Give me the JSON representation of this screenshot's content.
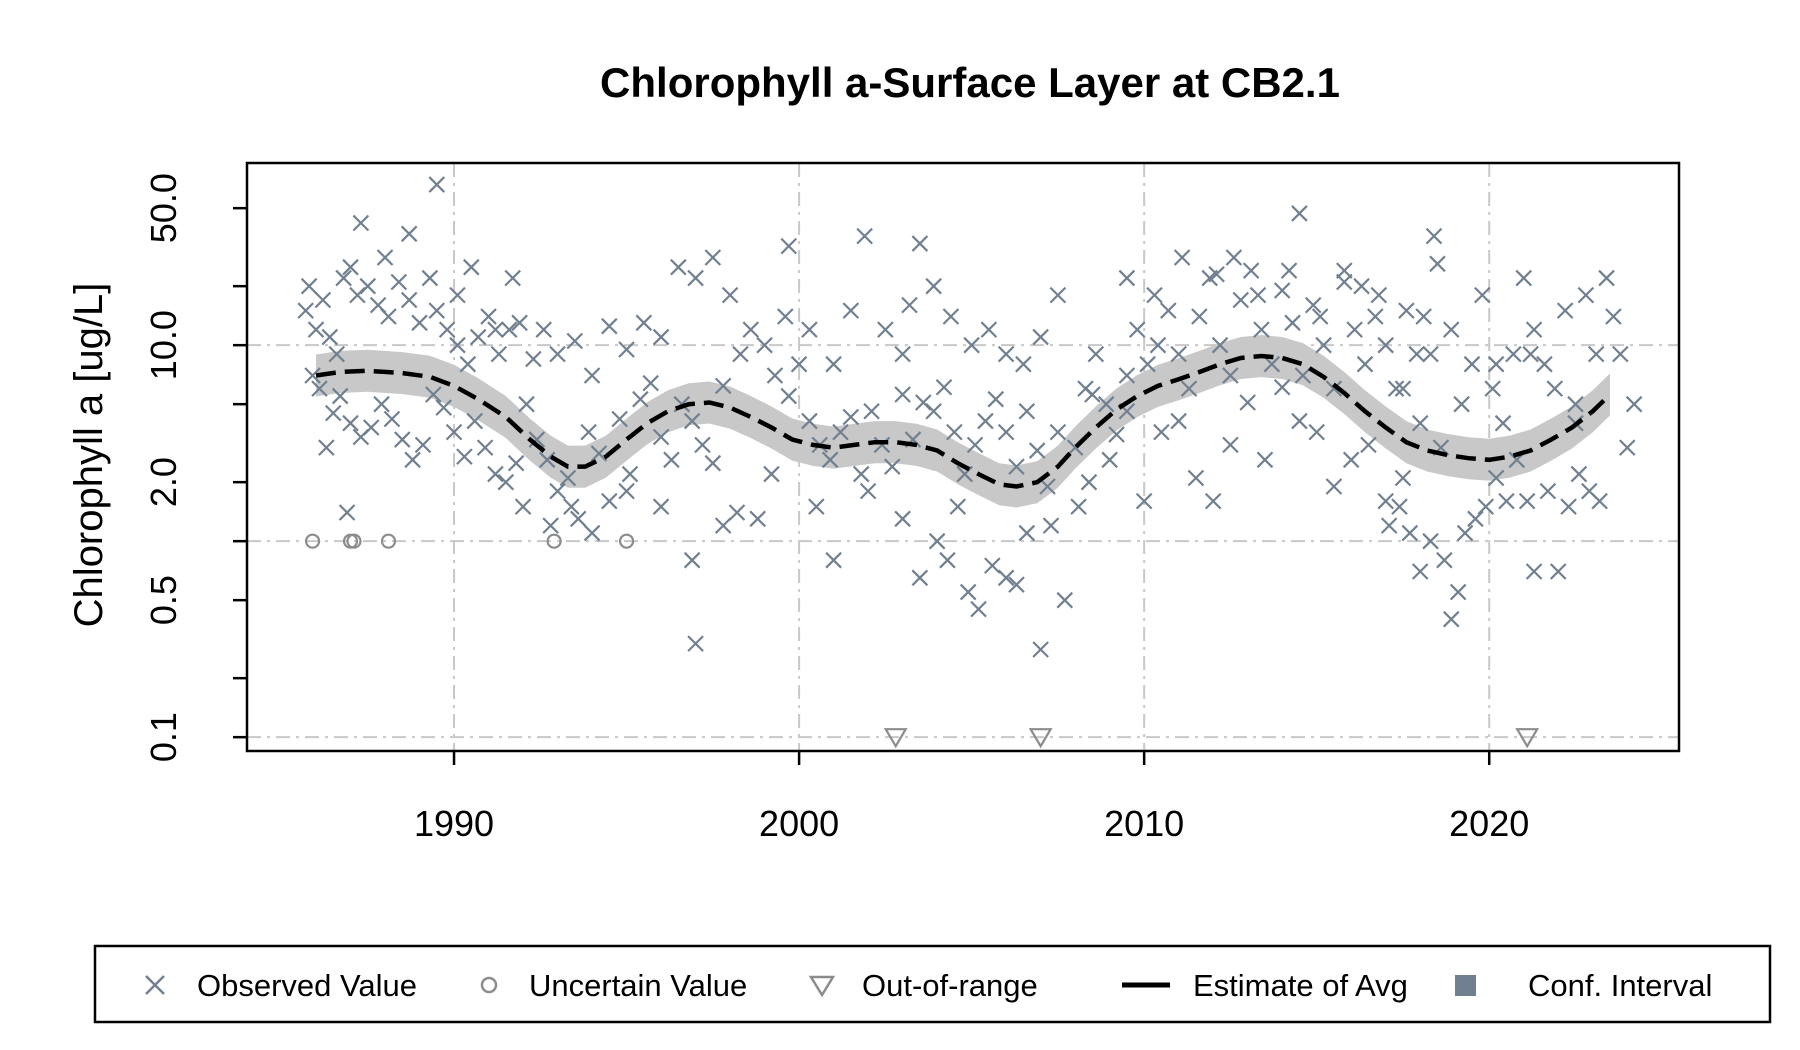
{
  "chart_data": {
    "type": "scatter",
    "title": "Chlorophyll a-Surface Layer at CB2.1",
    "xlabel": "",
    "ylabel": "Chlorophyll a [ug/L]",
    "x_scale": "linear",
    "y_scale": "log",
    "xlim": [
      1984,
      2025.5
    ],
    "ylim": [
      0.085,
      85
    ],
    "x_ticks": [
      {
        "value": 1990,
        "label": "1990"
      },
      {
        "value": 2000,
        "label": "2000"
      },
      {
        "value": 2010,
        "label": "2010"
      },
      {
        "value": 2020,
        "label": "2020"
      }
    ],
    "y_ticks": [
      {
        "value": 0.1,
        "label": "0.1"
      },
      {
        "value": 0.2,
        "label": ""
      },
      {
        "value": 0.5,
        "label": "0.5"
      },
      {
        "value": 1,
        "label": ""
      },
      {
        "value": 2,
        "label": "2.0"
      },
      {
        "value": 5,
        "label": ""
      },
      {
        "value": 10,
        "label": "10.0"
      },
      {
        "value": 20,
        "label": ""
      },
      {
        "value": 50,
        "label": "50.0"
      }
    ],
    "grid": true,
    "grid_x": [
      1990,
      2000,
      2010,
      2020
    ],
    "grid_y": [
      0.1,
      1,
      10
    ],
    "legend": {
      "position": "bottom",
      "entries": [
        {
          "label": "Observed Value",
          "symbol": "x"
        },
        {
          "label": "Uncertain Value",
          "symbol": "circle"
        },
        {
          "label": "Out-of-range",
          "symbol": "triangle"
        },
        {
          "label": "Estimate of Avg",
          "symbol": "line"
        },
        {
          "label": "Conf. Interval",
          "symbol": "square"
        }
      ]
    },
    "colors": {
      "observed": "#708090",
      "uncertain": "#8c8c8c",
      "out_of_range": "#8c8c8c",
      "estimate": "#000000",
      "ci_band": "#c8c8c8",
      "ci_legend": "#708090",
      "grid": "#c8c8c8"
    },
    "observed": [
      [
        1985.7,
        15
      ],
      [
        1985.8,
        20
      ],
      [
        1986.0,
        12
      ],
      [
        1986.2,
        17
      ],
      [
        1986.4,
        11
      ],
      [
        1986.6,
        9
      ],
      [
        1986.8,
        22
      ],
      [
        1987.0,
        25
      ],
      [
        1987.2,
        18
      ],
      [
        1987.5,
        20
      ],
      [
        1987.8,
        16
      ],
      [
        1988.1,
        14
      ],
      [
        1988.4,
        21
      ],
      [
        1988.7,
        17
      ],
      [
        1989.0,
        13
      ],
      [
        1989.3,
        22
      ],
      [
        1989.5,
        15
      ],
      [
        1989.8,
        12
      ],
      [
        1990.1,
        10
      ],
      [
        1990.4,
        8
      ],
      [
        1990.7,
        11
      ],
      [
        1991.0,
        14
      ],
      [
        1991.3,
        9
      ],
      [
        1991.6,
        12
      ],
      [
        1991.9,
        13
      ],
      [
        1985.9,
        7
      ],
      [
        1986.1,
        6
      ],
      [
        1986.3,
        3
      ],
      [
        1986.5,
        4.5
      ],
      [
        1986.7,
        5.5
      ],
      [
        1987.0,
        4
      ],
      [
        1987.3,
        3.4
      ],
      [
        1987.6,
        3.8
      ],
      [
        1987.9,
        5
      ],
      [
        1988.2,
        4.2
      ],
      [
        1988.5,
        3.3
      ],
      [
        1988.8,
        2.6
      ],
      [
        1989.1,
        3.1
      ],
      [
        1989.4,
        5.6
      ],
      [
        1989.7,
        4.8
      ],
      [
        1990.0,
        3.6
      ],
      [
        1990.3,
        2.7
      ],
      [
        1990.6,
        4.1
      ],
      [
        1990.9,
        3.0
      ],
      [
        1991.2,
        2.2
      ],
      [
        1991.5,
        2.0
      ],
      [
        1991.8,
        2.5
      ],
      [
        1986.9,
        1.4
      ],
      [
        1987.3,
        42
      ],
      [
        1988.0,
        28
      ],
      [
        1988.7,
        37
      ],
      [
        1989.5,
        66
      ],
      [
        1990.1,
        18
      ],
      [
        1990.5,
        25
      ],
      [
        1991.2,
        12
      ],
      [
        1991.7,
        22
      ],
      [
        1992.1,
        5
      ],
      [
        1992.4,
        3.3
      ],
      [
        1992.7,
        2.6
      ],
      [
        1993.0,
        1.8
      ],
      [
        1993.3,
        2.1
      ],
      [
        1993.6,
        1.3
      ],
      [
        1993.9,
        3.6
      ],
      [
        1994.2,
        2.8
      ],
      [
        1994.5,
        1.6
      ],
      [
        1994.8,
        4.2
      ],
      [
        1995.1,
        2.2
      ],
      [
        1995.4,
        5.3
      ],
      [
        1995.7,
        6.4
      ],
      [
        1996.0,
        3.4
      ],
      [
        1996.3,
        2.6
      ],
      [
        1996.6,
        5
      ],
      [
        1996.9,
        4.1
      ],
      [
        1997.2,
        3.1
      ],
      [
        1997.5,
        2.5
      ],
      [
        1997.8,
        6.2
      ],
      [
        1992.3,
        8.5
      ],
      [
        1992.6,
        12
      ],
      [
        1993.0,
        9
      ],
      [
        1993.5,
        10.5
      ],
      [
        1994.0,
        7
      ],
      [
        1994.5,
        12.5
      ],
      [
        1995.0,
        9.5
      ],
      [
        1995.5,
        13
      ],
      [
        1996.0,
        11
      ],
      [
        1996.5,
        25
      ],
      [
        1997.0,
        22
      ],
      [
        1997.5,
        28
      ],
      [
        1998.0,
        18
      ],
      [
        1998.3,
        9
      ],
      [
        1998.6,
        12
      ],
      [
        1999.0,
        10
      ],
      [
        1999.3,
        7
      ],
      [
        1999.6,
        14
      ],
      [
        1992.0,
        1.5
      ],
      [
        1992.8,
        1.2
      ],
      [
        1993.4,
        1.5
      ],
      [
        1994.0,
        1.1
      ],
      [
        1995.0,
        1.8
      ],
      [
        1996.0,
        1.5
      ],
      [
        1996.9,
        0.8
      ],
      [
        1997.0,
        0.3
      ],
      [
        1997.8,
        1.2
      ],
      [
        1998.2,
        1.4
      ],
      [
        1998.8,
        1.3
      ],
      [
        1999.2,
        2.2
      ],
      [
        1999.7,
        5.5
      ],
      [
        2000.0,
        8
      ],
      [
        2000.3,
        4.1
      ],
      [
        2000.6,
        3.1
      ],
      [
        2000.9,
        2.6
      ],
      [
        2001.2,
        3.6
      ],
      [
        2001.5,
        4.3
      ],
      [
        2001.8,
        2.2
      ],
      [
        2002.1,
        4.6
      ],
      [
        2002.4,
        3.1
      ],
      [
        2002.7,
        2.4
      ],
      [
        2003.0,
        5.6
      ],
      [
        2003.3,
        3.3
      ],
      [
        2003.6,
        5.1
      ],
      [
        2003.9,
        4.6
      ],
      [
        2004.2,
        6.1
      ],
      [
        2004.5,
        3.6
      ],
      [
        2004.8,
        2.2
      ],
      [
        2005.1,
        3.1
      ],
      [
        2005.4,
        4.1
      ],
      [
        2005.7,
        5.3
      ],
      [
        2006.0,
        3.6
      ],
      [
        2006.3,
        2.4
      ],
      [
        2006.6,
        4.6
      ],
      [
        2006.9,
        2.9
      ],
      [
        2007.2,
        1.9
      ],
      [
        2007.5,
        3.6
      ],
      [
        1999.7,
        32
      ],
      [
        2000.3,
        12
      ],
      [
        2001.0,
        8
      ],
      [
        2001.5,
        15
      ],
      [
        2001.9,
        36
      ],
      [
        2002.5,
        12
      ],
      [
        2003.0,
        9
      ],
      [
        2003.2,
        16
      ],
      [
        2003.5,
        33
      ],
      [
        2003.9,
        20
      ],
      [
        2004.4,
        14
      ],
      [
        2005.0,
        10
      ],
      [
        2005.5,
        12
      ],
      [
        2006.0,
        9
      ],
      [
        2006.5,
        8
      ],
      [
        2007.0,
        11
      ],
      [
        2007.5,
        18
      ],
      [
        2000.5,
        1.5
      ],
      [
        2001.0,
        0.8
      ],
      [
        2002.0,
        1.8
      ],
      [
        2003.0,
        1.3
      ],
      [
        2003.5,
        0.65
      ],
      [
        2004.0,
        1.0
      ],
      [
        2004.3,
        0.8
      ],
      [
        2004.6,
        1.5
      ],
      [
        2004.9,
        0.55
      ],
      [
        2005.2,
        0.45
      ],
      [
        2005.6,
        0.75
      ],
      [
        2006.0,
        0.65
      ],
      [
        2006.3,
        0.6
      ],
      [
        2006.6,
        1.1
      ],
      [
        2007.0,
        0.28
      ],
      [
        2007.3,
        1.2
      ],
      [
        2007.7,
        0.5
      ],
      [
        2008.1,
        1.5
      ],
      [
        2008.4,
        2.0
      ],
      [
        2008.0,
        3
      ],
      [
        2008.3,
        6
      ],
      [
        2008.6,
        9
      ],
      [
        2008.9,
        5
      ],
      [
        2009.2,
        3.5
      ],
      [
        2009.5,
        7
      ],
      [
        2009.8,
        12
      ],
      [
        2010.1,
        8
      ],
      [
        2010.4,
        10
      ],
      [
        2010.7,
        15
      ],
      [
        2011.0,
        9
      ],
      [
        2011.3,
        6
      ],
      [
        2011.6,
        14
      ],
      [
        2011.9,
        22
      ],
      [
        2012.2,
        10
      ],
      [
        2012.5,
        7
      ],
      [
        2012.8,
        17
      ],
      [
        2013.1,
        24
      ],
      [
        2013.4,
        12
      ],
      [
        2013.7,
        8
      ],
      [
        2014.0,
        19
      ],
      [
        2014.3,
        13
      ],
      [
        2014.6,
        7
      ],
      [
        2014.9,
        16
      ],
      [
        2015.2,
        10
      ],
      [
        2015.5,
        6
      ],
      [
        2015.8,
        21
      ],
      [
        2016.1,
        12
      ],
      [
        2016.4,
        8
      ],
      [
        2016.7,
        14
      ],
      [
        2017.0,
        10
      ],
      [
        2017.3,
        6
      ],
      [
        2017.6,
        15
      ],
      [
        2017.9,
        9
      ],
      [
        2008.5,
        5.6
      ],
      [
        2009.0,
        2.6
      ],
      [
        2009.5,
        4.6
      ],
      [
        2010.0,
        1.6
      ],
      [
        2010.5,
        3.6
      ],
      [
        2011.0,
        4.1
      ],
      [
        2011.5,
        2.1
      ],
      [
        2012.0,
        1.6
      ],
      [
        2012.5,
        3.1
      ],
      [
        2013.0,
        5.1
      ],
      [
        2013.5,
        2.6
      ],
      [
        2014.0,
        6.1
      ],
      [
        2014.5,
        4.1
      ],
      [
        2015.0,
        3.6
      ],
      [
        2015.5,
        1.9
      ],
      [
        2016.0,
        2.6
      ],
      [
        2016.5,
        3.1
      ],
      [
        2017.0,
        1.6
      ],
      [
        2017.5,
        2.1
      ],
      [
        2009.5,
        22
      ],
      [
        2010.3,
        18
      ],
      [
        2011.1,
        28
      ],
      [
        2012.1,
        23
      ],
      [
        2012.6,
        28
      ],
      [
        2013.3,
        18
      ],
      [
        2014.2,
        24
      ],
      [
        2014.5,
        47
      ],
      [
        2015.1,
        14
      ],
      [
        2015.8,
        24
      ],
      [
        2016.3,
        20
      ],
      [
        2016.8,
        18
      ],
      [
        2017.1,
        1.2
      ],
      [
        2017.4,
        1.5
      ],
      [
        2017.7,
        1.1
      ],
      [
        2018.0,
        0.7
      ],
      [
        2018.3,
        1.0
      ],
      [
        2018.7,
        0.8
      ],
      [
        2018.9,
        0.4
      ],
      [
        2019.1,
        0.55
      ],
      [
        2019.3,
        1.1
      ],
      [
        2019.6,
        1.3
      ],
      [
        2019.9,
        1.5
      ],
      [
        2020.2,
        2.1
      ],
      [
        2020.5,
        1.6
      ],
      [
        2020.8,
        2.6
      ],
      [
        2021.1,
        1.6
      ],
      [
        2021.3,
        0.7
      ],
      [
        2021.7,
        1.8
      ],
      [
        2022.0,
        0.7
      ],
      [
        2022.3,
        1.5
      ],
      [
        2022.6,
        2.2
      ],
      [
        2022.9,
        1.8
      ],
      [
        2023.2,
        1.6
      ],
      [
        2017.5,
        6
      ],
      [
        2018.0,
        4
      ],
      [
        2018.3,
        9
      ],
      [
        2018.6,
        3
      ],
      [
        2018.9,
        12
      ],
      [
        2019.2,
        5
      ],
      [
        2019.5,
        8
      ],
      [
        2019.8,
        18
      ],
      [
        2020.1,
        6
      ],
      [
        2020.4,
        4
      ],
      [
        2020.7,
        9
      ],
      [
        2021.0,
        22
      ],
      [
        2021.3,
        12
      ],
      [
        2021.6,
        8
      ],
      [
        2021.9,
        6
      ],
      [
        2022.2,
        15
      ],
      [
        2022.5,
        5
      ],
      [
        2022.8,
        18
      ],
      [
        2023.1,
        9
      ],
      [
        2023.4,
        22
      ],
      [
        2023.6,
        14
      ],
      [
        2023.8,
        9
      ],
      [
        2024.0,
        3
      ],
      [
        2024.2,
        5
      ],
      [
        2018.1,
        14
      ],
      [
        2018.4,
        36
      ],
      [
        2018.5,
        26
      ],
      [
        2020.2,
        8
      ],
      [
        2021.2,
        9
      ],
      [
        2022.5,
        4
      ]
    ],
    "uncertain": [
      [
        1985.9,
        1.0
      ],
      [
        1987.0,
        1.0
      ],
      [
        1987.1,
        1.0
      ],
      [
        1988.1,
        1.0
      ],
      [
        1992.9,
        1.0
      ],
      [
        1995.0,
        1.0
      ]
    ],
    "out_of_range": [
      [
        2002.8,
        0.1
      ],
      [
        2007.0,
        0.1
      ],
      [
        2021.1,
        0.1
      ]
    ],
    "estimate": [
      [
        1986.0,
        7.0
      ],
      [
        1986.7,
        7.3
      ],
      [
        1987.5,
        7.4
      ],
      [
        1988.5,
        7.2
      ],
      [
        1989.3,
        6.9
      ],
      [
        1990.0,
        6.2
      ],
      [
        1990.7,
        5.3
      ],
      [
        1991.5,
        4.3
      ],
      [
        1992.2,
        3.3
      ],
      [
        1992.8,
        2.7
      ],
      [
        1993.3,
        2.4
      ],
      [
        1993.8,
        2.4
      ],
      [
        1994.4,
        2.7
      ],
      [
        1995.0,
        3.3
      ],
      [
        1995.6,
        4.0
      ],
      [
        1996.2,
        4.6
      ],
      [
        1996.8,
        5.0
      ],
      [
        1997.4,
        5.1
      ],
      [
        1998.0,
        4.8
      ],
      [
        1998.6,
        4.3
      ],
      [
        1999.2,
        3.8
      ],
      [
        1999.8,
        3.3
      ],
      [
        2000.4,
        3.1
      ],
      [
        2001.0,
        3.0
      ],
      [
        2001.6,
        3.1
      ],
      [
        2002.2,
        3.2
      ],
      [
        2002.8,
        3.2
      ],
      [
        2003.4,
        3.1
      ],
      [
        2004.0,
        2.9
      ],
      [
        2004.6,
        2.5
      ],
      [
        2005.2,
        2.2
      ],
      [
        2005.8,
        1.95
      ],
      [
        2006.3,
        1.9
      ],
      [
        2006.9,
        2.0
      ],
      [
        2007.5,
        2.4
      ],
      [
        2008.0,
        3.0
      ],
      [
        2008.6,
        3.8
      ],
      [
        2009.2,
        4.7
      ],
      [
        2009.8,
        5.5
      ],
      [
        2010.4,
        6.2
      ],
      [
        2011.0,
        6.7
      ],
      [
        2011.6,
        7.3
      ],
      [
        2012.2,
        8.0
      ],
      [
        2012.8,
        8.6
      ],
      [
        2013.4,
        8.8
      ],
      [
        2014.0,
        8.6
      ],
      [
        2014.6,
        8.0
      ],
      [
        2015.2,
        6.9
      ],
      [
        2015.8,
        5.7
      ],
      [
        2016.4,
        4.6
      ],
      [
        2017.0,
        3.8
      ],
      [
        2017.6,
        3.2
      ],
      [
        2018.2,
        2.9
      ],
      [
        2018.8,
        2.75
      ],
      [
        2019.4,
        2.65
      ],
      [
        2020.0,
        2.6
      ],
      [
        2020.6,
        2.7
      ],
      [
        2021.2,
        2.9
      ],
      [
        2021.8,
        3.3
      ],
      [
        2022.4,
        3.8
      ],
      [
        2023.0,
        4.6
      ],
      [
        2023.5,
        5.6
      ]
    ],
    "ci_band_width_factor": 1.28
  }
}
